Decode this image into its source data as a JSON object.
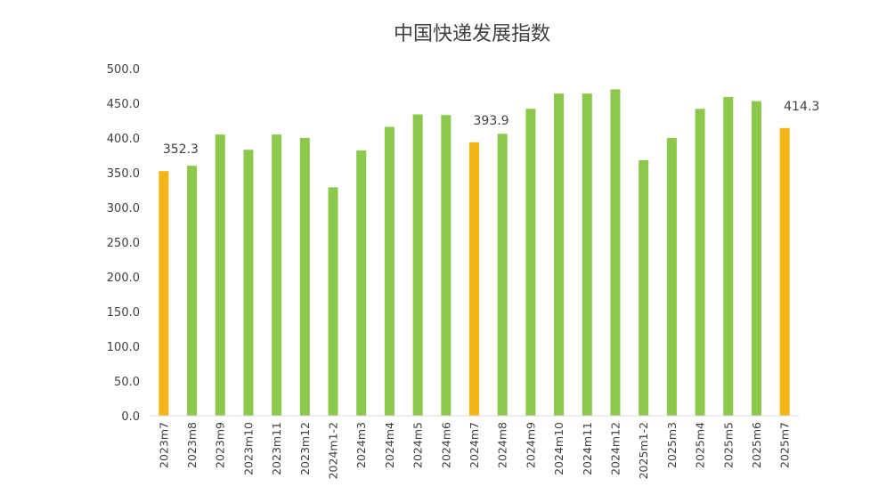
{
  "chart_data": {
    "type": "bar",
    "title": "中国快递发展指数",
    "xlabel": "",
    "ylabel": "",
    "ylim": [
      0,
      500
    ],
    "yticks": [
      "0.0",
      "50.0",
      "100.0",
      "150.0",
      "200.0",
      "250.0",
      "300.0",
      "350.0",
      "400.0",
      "450.0",
      "500.0"
    ],
    "grid": false,
    "categories": [
      "2023m7",
      "2023m8",
      "2023m9",
      "2023m10",
      "2023m11",
      "2023m12",
      "2024m1-2",
      "2024m3",
      "2024m4",
      "2024m5",
      "2024m6",
      "2024m7",
      "2024m8",
      "2024m9",
      "2024m10",
      "2024m11",
      "2024m12",
      "2025m1-2",
      "2025m3",
      "2025m4",
      "2025m5",
      "2025m6",
      "2025m7"
    ],
    "values": [
      352.3,
      360,
      405,
      383,
      405,
      400,
      329,
      382,
      416,
      434,
      433,
      393.9,
      406,
      442,
      464,
      464,
      470,
      368,
      400,
      442,
      459,
      453,
      414.3
    ],
    "data_labels": {
      "0": "352.3",
      "11": "393.9",
      "22": "414.3"
    },
    "colors": {
      "default": "#8cc84b",
      "highlight": "#f5b417",
      "axis": "#d9d9d9",
      "text": "#404040"
    },
    "highlighted": [
      0,
      11,
      22
    ]
  }
}
